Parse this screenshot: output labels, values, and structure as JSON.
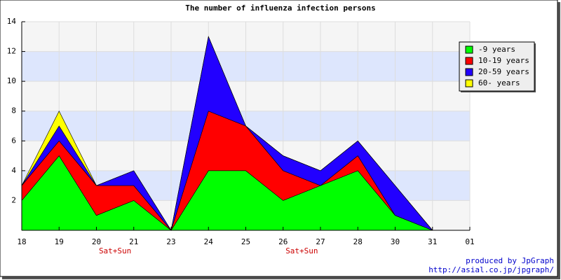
{
  "chart_data": {
    "type": "stacked_area",
    "title": "The number of influenza infection persons",
    "categories": [
      "18",
      "19",
      "20",
      "21",
      "23",
      "24",
      "25",
      "26",
      "27",
      "28",
      "30",
      "31",
      "01"
    ],
    "x_sublabels": [
      null,
      null,
      "Sat+Sun",
      null,
      null,
      null,
      null,
      "Sat+Sun",
      null,
      null,
      null,
      null,
      null
    ],
    "series": [
      {
        "name": "-9 years",
        "color": "#00ff00",
        "values": [
          2,
          5,
          1,
          2,
          0,
          4,
          4,
          2,
          3,
          4,
          1,
          0,
          null
        ]
      },
      {
        "name": "10-19 years",
        "color": "#ff0000",
        "values": [
          1,
          1,
          2,
          1,
          0,
          4,
          3,
          2,
          0,
          1,
          0,
          0,
          null
        ]
      },
      {
        "name": "20-59 years",
        "color": "#2200ff",
        "values": [
          0,
          1,
          0,
          1,
          0,
          5,
          0,
          1,
          1,
          1,
          2,
          0,
          null
        ]
      },
      {
        "name": "60- years",
        "color": "#ffff00",
        "values": [
          0,
          1,
          0,
          0,
          0,
          0,
          0,
          0,
          0,
          0,
          0,
          0,
          null
        ]
      }
    ],
    "ylim": [
      0,
      14
    ],
    "yticks": [
      2,
      4,
      6,
      8,
      10,
      12,
      14
    ],
    "grid": true,
    "legend": "top-right",
    "credits": [
      "produced by JpGraph",
      "http://asial.co.jp/jpgraph/"
    ]
  }
}
